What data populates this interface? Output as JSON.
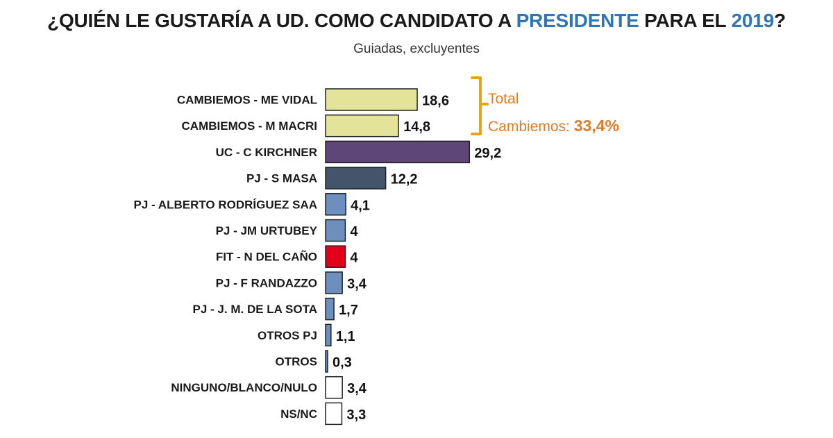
{
  "header": {
    "title_part1": "¿QUIÉN LE GUSTARÍA A UD. COMO CANDIDATO A ",
    "title_highlight1": "PRESIDENTE",
    "title_part2": " PARA EL ",
    "title_highlight2": "2019",
    "title_part3": "?",
    "subtitle": "Guiadas, excluyentes"
  },
  "annotation": {
    "line1": "Total",
    "line2_text": "Cambiemos: ",
    "line2_value": "33,4%",
    "color": "#e8a317"
  },
  "chart_data": {
    "type": "bar",
    "orientation": "horizontal",
    "title": "¿QUIÉN LE GUSTARÍA A UD. COMO CANDIDATO A PRESIDENTE PARA EL 2019?",
    "subtitle": "Guiadas, excluyentes",
    "xlim": [
      0,
      30
    ],
    "grid": false,
    "categories": [
      "CAMBIEMOS - ME VIDAL",
      "CAMBIEMOS - M MACRI",
      "UC - C KIRCHNER",
      "PJ - S MASA",
      "PJ - ALBERTO RODRÍGUEZ SAA",
      "PJ - JM URTUBEY",
      "FIT - N DEL CAÑO",
      "PJ - F RANDAZZO",
      "PJ - J. M. DE LA SOTA",
      "OTROS PJ",
      "OTROS",
      "NINGUNO/BLANCO/NULO",
      "NS/NC"
    ],
    "values": [
      18.6,
      14.8,
      29.2,
      12.2,
      4.1,
      4,
      4,
      3.4,
      1.7,
      1.1,
      0.3,
      3.4,
      3.3
    ],
    "value_labels": [
      "18,6",
      "14,8",
      "29,2",
      "12,2",
      "4,1",
      "4",
      "4",
      "3,4",
      "1,7",
      "1,1",
      "0,3",
      "3,4",
      "3,3"
    ],
    "colors": [
      "#e3e39a",
      "#e3e39a",
      "#5e4679",
      "#44546a",
      "#6d8fbd",
      "#6d8fbd",
      "#e2001a",
      "#6d8fbd",
      "#6d8fbd",
      "#6d8fbd",
      "#6d8fbd",
      "#ffffff",
      "#ffffff"
    ]
  }
}
